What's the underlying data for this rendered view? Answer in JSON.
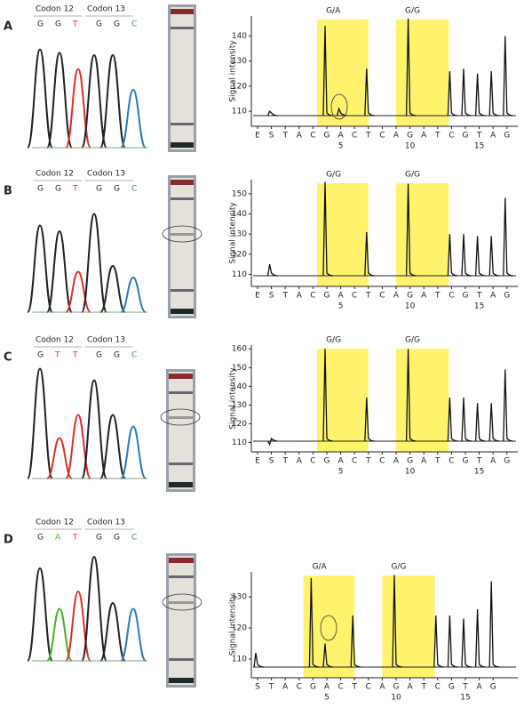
{
  "panels": [
    {
      "label": "A",
      "codon_labels": [
        "Codon 12",
        "Codon 13"
      ],
      "bases": [
        "G",
        "G",
        "T",
        "G",
        "G",
        "C"
      ],
      "pyrogram": {
        "ylabel": "Signal intensity",
        "ylim": [
          104,
          148
        ],
        "yticks": [
          110,
          120,
          130,
          140
        ],
        "genotypes": [
          "G/A",
          "G/G"
        ],
        "dispensation": [
          "E",
          "S",
          "T",
          "A",
          "C",
          "G",
          "A",
          "C",
          "T",
          "C",
          "A",
          "G",
          "A",
          "T",
          "C",
          "G",
          "T",
          "A",
          "G"
        ],
        "numbers": [
          null,
          null,
          null,
          null,
          null,
          null,
          5,
          null,
          null,
          null,
          null,
          10,
          null,
          null,
          null,
          null,
          15,
          null,
          null
        ],
        "peaks": [
          null,
          110,
          null,
          null,
          null,
          144,
          111,
          null,
          127,
          null,
          null,
          147,
          null,
          null,
          126,
          127,
          125,
          126,
          140
        ]
      }
    },
    {
      "label": "B",
      "codon_labels": [
        "Codon 12",
        "Codon 13"
      ],
      "bases": [
        "G",
        "G",
        "T",
        "G",
        "G",
        "C"
      ],
      "pyrogram": {
        "ylabel": "Signal intensity",
        "ylim": [
          104,
          157
        ],
        "yticks": [
          110,
          120,
          130,
          140,
          150
        ],
        "genotypes": [
          "G/G",
          "G/G"
        ],
        "dispensation": [
          "E",
          "S",
          "T",
          "A",
          "C",
          "G",
          "A",
          "C",
          "T",
          "C",
          "A",
          "G",
          "A",
          "T",
          "C",
          "G",
          "T",
          "A",
          "G"
        ],
        "numbers": [
          null,
          null,
          null,
          null,
          null,
          null,
          5,
          null,
          null,
          null,
          null,
          10,
          null,
          null,
          null,
          null,
          15,
          null,
          null
        ],
        "peaks": [
          null,
          115,
          null,
          null,
          null,
          156,
          null,
          null,
          131,
          null,
          null,
          155,
          null,
          null,
          130,
          130,
          129,
          129,
          148
        ]
      }
    },
    {
      "label": "C",
      "codon_labels": [
        "Codon 12",
        "Codon 13"
      ],
      "bases": [
        "G",
        "T",
        "T",
        "G",
        "G",
        "C"
      ],
      "pyrogram": {
        "ylabel": "Signal intensity",
        "ylim": [
          105,
          162
        ],
        "yticks": [
          110,
          120,
          130,
          140,
          150,
          160
        ],
        "genotypes": [
          "G/G",
          "G/G"
        ],
        "dispensation": [
          "E",
          "S",
          "T",
          "A",
          "C",
          "G",
          "A",
          "C",
          "T",
          "C",
          "A",
          "G",
          "A",
          "T",
          "C",
          "G",
          "T",
          "A",
          "G"
        ],
        "numbers": [
          null,
          null,
          null,
          null,
          null,
          null,
          5,
          null,
          null,
          null,
          null,
          10,
          null,
          null,
          null,
          null,
          15,
          null,
          null
        ],
        "peaks": [
          null,
          109,
          null,
          null,
          null,
          160,
          null,
          null,
          134,
          null,
          null,
          160,
          null,
          null,
          134,
          134,
          131,
          131,
          149
        ]
      }
    },
    {
      "label": "D",
      "codon_labels": [
        "Codon 12",
        "Codon 13"
      ],
      "bases": [
        "G",
        "A",
        "T",
        "G",
        "G",
        "C"
      ],
      "pyrogram": {
        "ylabel": "Signal intensity",
        "ylim": [
          104,
          138
        ],
        "yticks": [
          110,
          120,
          130
        ],
        "genotypes": [
          "G/A",
          "G/G"
        ],
        "dispensation": [
          "S",
          "T",
          "A",
          "C",
          "G",
          "A",
          "C",
          "T",
          "C",
          "A",
          "G",
          "A",
          "T",
          "C",
          "G",
          "T",
          "A",
          "G"
        ],
        "numbers": [
          null,
          null,
          null,
          null,
          null,
          5,
          null,
          null,
          null,
          null,
          10,
          null,
          null,
          null,
          null,
          15,
          null,
          null
        ],
        "peaks": [
          112,
          null,
          null,
          null,
          136,
          115,
          null,
          124,
          null,
          null,
          137,
          null,
          null,
          124,
          124,
          123,
          126,
          135
        ]
      }
    }
  ]
}
